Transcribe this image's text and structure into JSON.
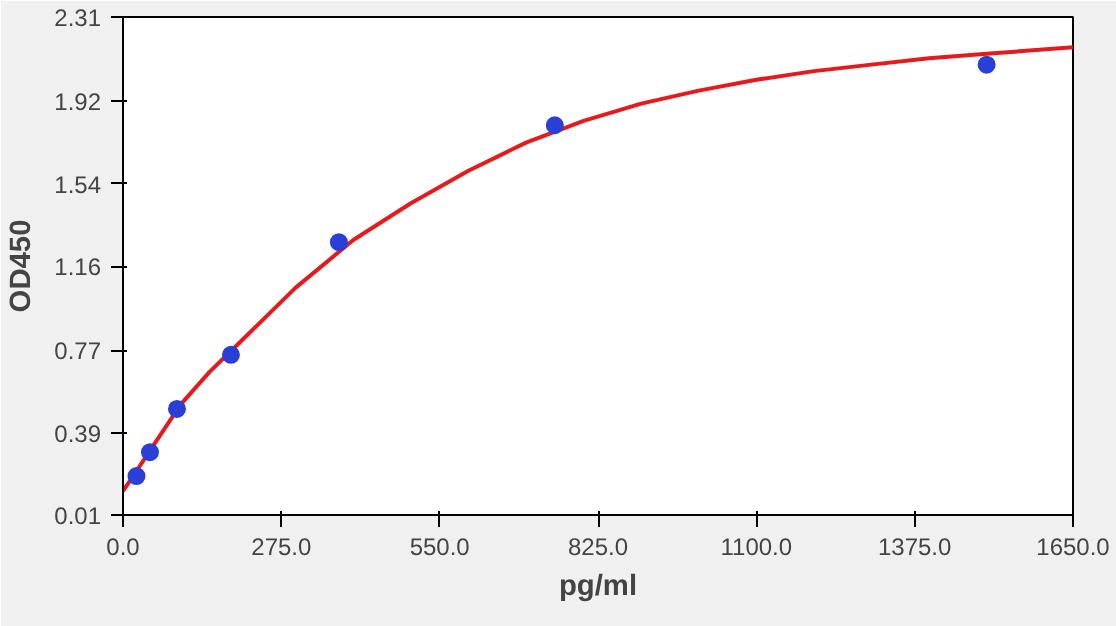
{
  "chart_data": {
    "type": "scatter",
    "xlabel": "pg/ml",
    "ylabel": "OD450",
    "xlim": [
      0,
      1650
    ],
    "ylim": [
      0.01,
      2.31
    ],
    "xticks": [
      {
        "value": 0,
        "label": "0.0"
      },
      {
        "value": 275,
        "label": "275.0"
      },
      {
        "value": 550,
        "label": "550.0"
      },
      {
        "value": 825,
        "label": "825.0"
      },
      {
        "value": 1100,
        "label": "1100.0"
      },
      {
        "value": 1375,
        "label": "1375.0"
      },
      {
        "value": 1650,
        "label": "1650.0"
      }
    ],
    "yticks": [
      0.01,
      0.39,
      0.77,
      1.16,
      1.54,
      1.92,
      2.31
    ],
    "grid": false,
    "series": [
      {
        "type": "line",
        "color": "#e41a1c",
        "marker": "none",
        "line_style": "solid",
        "x": [
          0,
          25,
          50,
          100,
          150,
          200,
          300,
          400,
          500,
          600,
          700,
          800,
          900,
          1000,
          1100,
          1200,
          1300,
          1400,
          1500,
          1650
        ],
        "values": [
          0.12,
          0.22,
          0.32,
          0.52,
          0.67,
          0.8,
          1.06,
          1.28,
          1.45,
          1.6,
          1.73,
          1.83,
          1.91,
          1.97,
          2.02,
          2.06,
          2.09,
          2.12,
          2.14,
          2.17
        ]
      },
      {
        "color": "#2a3fd6",
        "marker": "circle",
        "x": [
          23.44,
          46.88,
          93.75,
          187.5,
          375,
          750,
          1500
        ],
        "values": [
          0.19,
          0.3,
          0.5,
          0.75,
          1.27,
          1.81,
          2.09
        ]
      }
    ]
  }
}
